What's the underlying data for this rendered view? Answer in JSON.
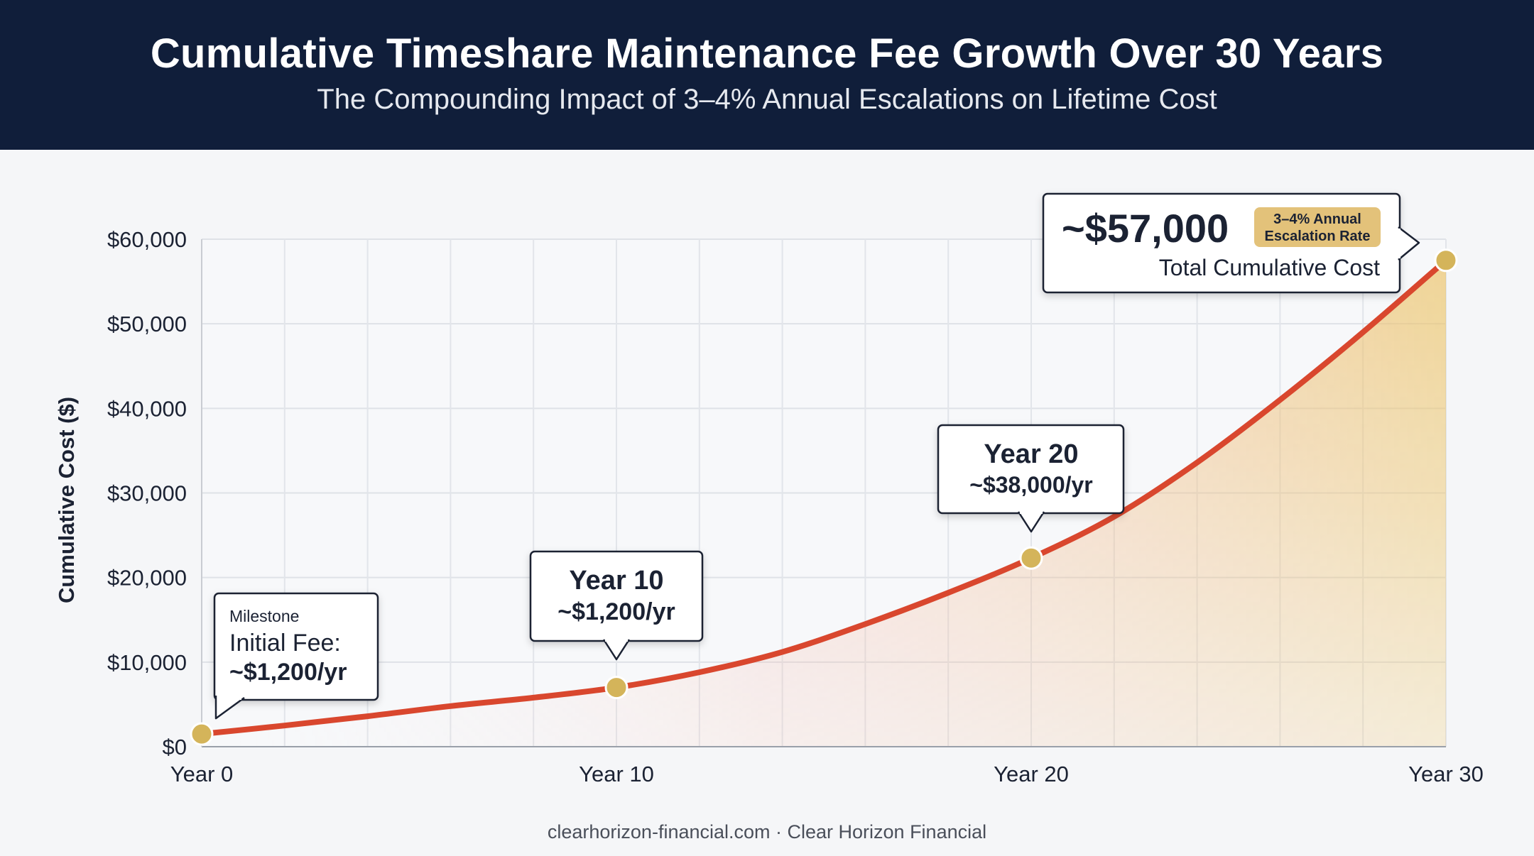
{
  "header": {
    "title": "Cumulative Timeshare Maintenance Fee Growth Over 30 Years",
    "subtitle": "The Compounding Impact of 3–4% Annual Escalations on Lifetime Cost"
  },
  "footer": {
    "text": "clearhorizon-financial.com · Clear Horizon Financial"
  },
  "colors": {
    "header_bg": "#101e3a",
    "line": "#d9472e",
    "marker": "#d4b45a",
    "fill_top": "#ecc56c",
    "fill_mid": "#f4a38e",
    "badge": "#e3c27a"
  },
  "chart_data": {
    "type": "area",
    "title": "Cumulative Timeshare Maintenance Fee Growth Over 30 Years",
    "subtitle": "The Compounding Impact of 3–4% Annual Escalations on Lifetime Cost",
    "xlabel": "",
    "ylabel": "Cumulative Cost ($)",
    "xlim": [
      0,
      30
    ],
    "ylim": [
      0,
      60000
    ],
    "grid": true,
    "x_ticks": [
      {
        "value": 0,
        "label": "Year 0"
      },
      {
        "value": 10,
        "label": "Year 10"
      },
      {
        "value": 20,
        "label": "Year 20"
      },
      {
        "value": 30,
        "label": "Year 30"
      }
    ],
    "y_ticks": [
      {
        "value": 0,
        "label": "$0"
      },
      {
        "value": 10000,
        "label": "$10,000"
      },
      {
        "value": 20000,
        "label": "$20,000"
      },
      {
        "value": 30000,
        "label": "$30,000"
      },
      {
        "value": 40000,
        "label": "$40,000"
      },
      {
        "value": 50000,
        "label": "$50,000"
      },
      {
        "value": 60000,
        "label": "$60,000"
      }
    ],
    "series": [
      {
        "x": [
          0,
          2,
          4,
          6,
          8,
          10,
          12,
          14,
          16,
          18,
          20,
          22,
          24,
          26,
          28,
          30
        ],
        "y": [
          1500,
          2500,
          3600,
          4800,
          5800,
          7000,
          8800,
          11200,
          14500,
          18200,
          22300,
          27200,
          33600,
          41000,
          49000,
          57500
        ]
      }
    ],
    "markers": [
      {
        "x": 0,
        "y": 1500
      },
      {
        "x": 10,
        "y": 7000
      },
      {
        "x": 20,
        "y": 22300
      },
      {
        "x": 30,
        "y": 57500
      }
    ],
    "annotations": [
      {
        "kicker": "Milestone",
        "line1": "Initial Fee:",
        "line2": "~$1,200/yr"
      },
      {
        "line1": "Year 10",
        "line2": "~$1,200/yr"
      },
      {
        "line1": "Year 20",
        "line2": "~$38,000/yr"
      },
      {
        "value": "~$57,000",
        "label": "Total Cumulative Cost",
        "badge_line1": "3–4% Annual",
        "badge_line2": "Escalation Rate"
      }
    ]
  }
}
